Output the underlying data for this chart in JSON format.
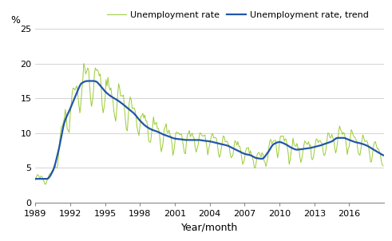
{
  "title": "",
  "xlabel": "Year/month",
  "ylabel": "%",
  "ylim": [
    0,
    25
  ],
  "yticks": [
    0,
    5,
    10,
    15,
    20,
    25
  ],
  "xlim_start": 1989.0,
  "xlim_end": 2019.0,
  "xtick_years": [
    1989,
    1992,
    1995,
    1998,
    2001,
    2004,
    2007,
    2010,
    2013,
    2016
  ],
  "line_color_rate": "#99cc33",
  "line_color_trend": "#2255aa",
  "legend_labels": [
    "Unemployment rate",
    "Unemployment rate, trend"
  ],
  "background_color": "#ffffff",
  "grid_color": "#cccccc",
  "trend_points_x": [
    1989.0,
    1990.0,
    1990.5,
    1991.0,
    1991.5,
    1992.0,
    1992.5,
    1993.0,
    1993.5,
    1994.0,
    1994.25,
    1994.5,
    1995.0,
    1995.5,
    1996.0,
    1996.5,
    1997.0,
    1997.5,
    1998.0,
    1998.5,
    1999.0,
    1999.5,
    2000.0,
    2000.5,
    2001.0,
    2001.5,
    2002.0,
    2002.5,
    2003.0,
    2003.5,
    2004.0,
    2004.5,
    2005.0,
    2005.5,
    2006.0,
    2006.5,
    2007.0,
    2007.5,
    2008.0,
    2008.5,
    2009.0,
    2009.5,
    2010.0,
    2010.5,
    2011.0,
    2011.5,
    2012.0,
    2012.5,
    2013.0,
    2013.5,
    2014.0,
    2014.5,
    2015.0,
    2015.5,
    2016.0,
    2016.5,
    2017.0,
    2017.5,
    2018.0,
    2018.5,
    2018.917
  ],
  "trend_points_y": [
    3.4,
    3.4,
    4.5,
    7.5,
    11.5,
    13.5,
    15.5,
    17.2,
    17.5,
    17.5,
    17.4,
    17.0,
    16.0,
    15.3,
    14.8,
    14.2,
    13.5,
    12.8,
    11.8,
    11.0,
    10.5,
    10.2,
    9.8,
    9.5,
    9.2,
    9.1,
    9.0,
    9.0,
    9.0,
    8.9,
    8.8,
    8.6,
    8.4,
    8.2,
    7.8,
    7.4,
    7.0,
    6.8,
    6.4,
    6.3,
    7.2,
    8.4,
    8.7,
    8.4,
    7.9,
    7.6,
    7.7,
    7.8,
    8.0,
    8.2,
    8.5,
    8.8,
    9.3,
    9.3,
    9.0,
    8.7,
    8.5,
    8.2,
    7.7,
    7.2,
    6.8
  ]
}
